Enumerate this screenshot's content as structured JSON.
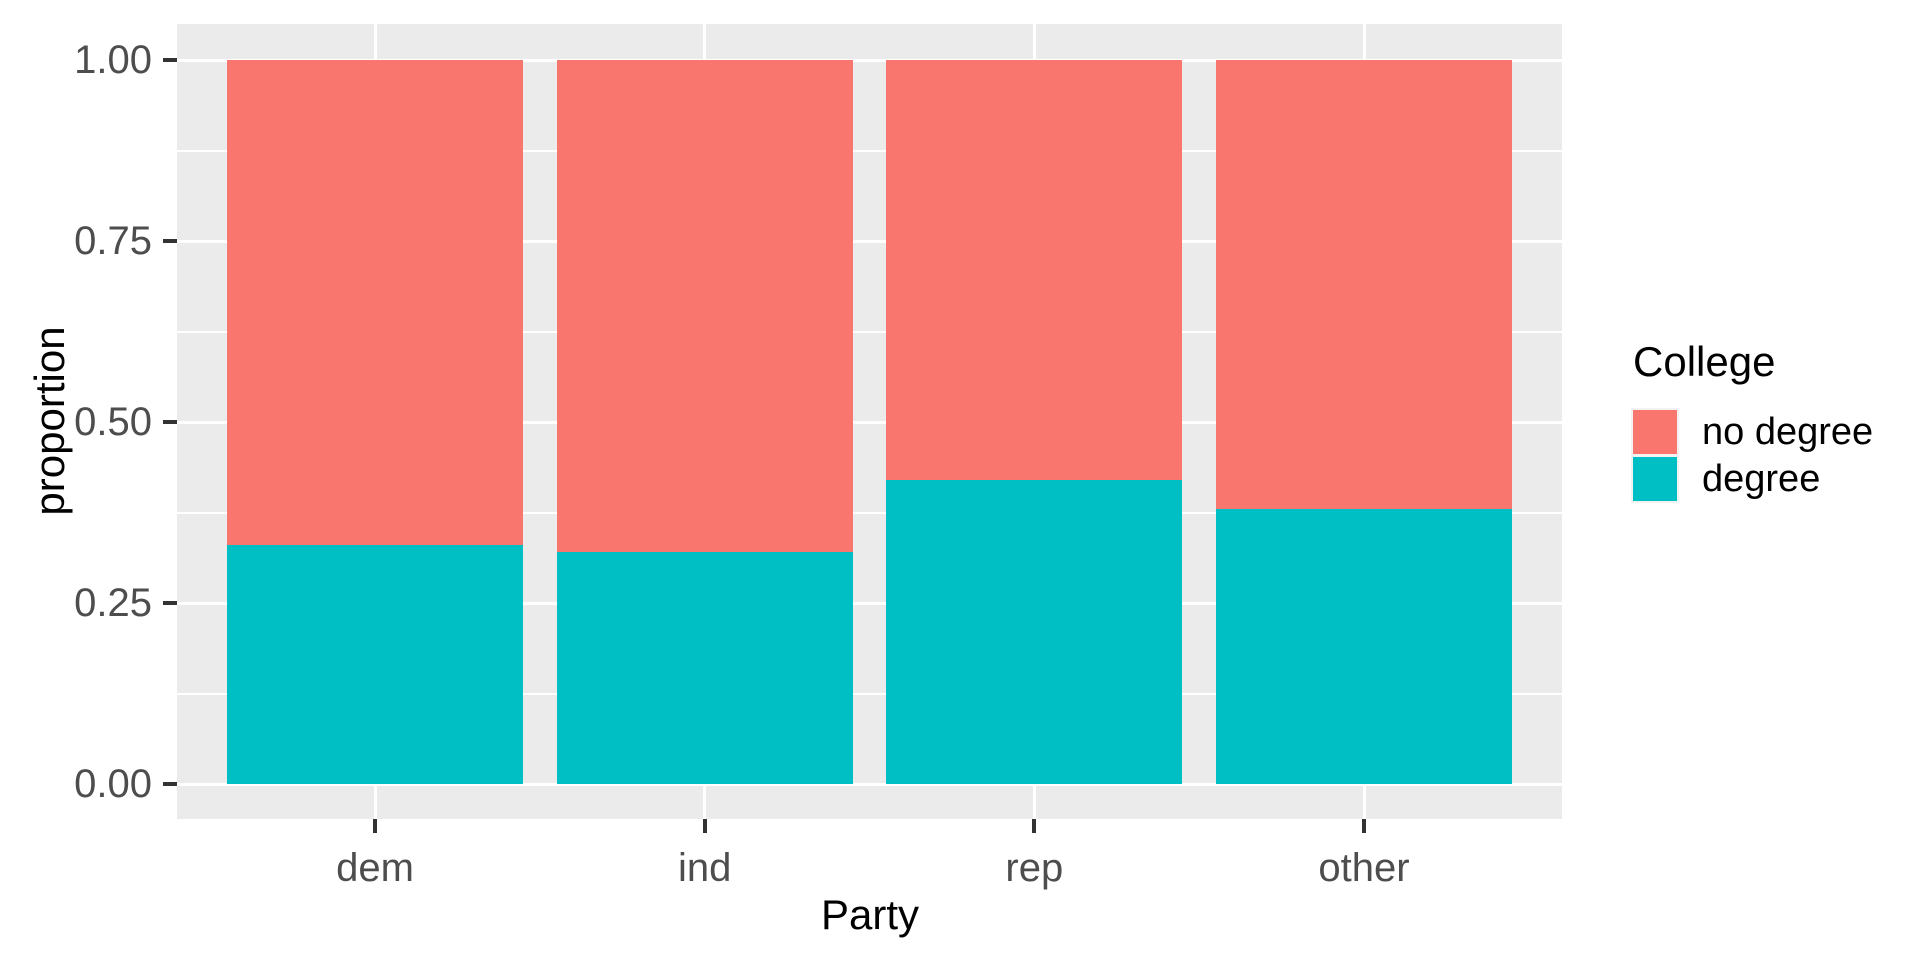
{
  "chart_data": {
    "type": "bar",
    "stacked": true,
    "orientation": "vertical",
    "title": "",
    "xlabel": "Party",
    "ylabel": "proportion",
    "categories": [
      "dem",
      "ind",
      "rep",
      "other"
    ],
    "series": [
      {
        "name": "no degree",
        "color": "#F8766D",
        "values": [
          0.67,
          0.68,
          0.58,
          0.62
        ]
      },
      {
        "name": "degree",
        "color": "#00BFC4",
        "values": [
          0.33,
          0.32,
          0.42,
          0.38
        ]
      }
    ],
    "ylim": [
      0,
      1
    ],
    "y_ticks": [
      {
        "value": 0.0,
        "label": "0.00"
      },
      {
        "value": 0.25,
        "label": "0.25"
      },
      {
        "value": 0.5,
        "label": "0.50"
      },
      {
        "value": 0.75,
        "label": "0.75"
      },
      {
        "value": 1.0,
        "label": "1.00"
      }
    ],
    "y_minor_ticks": [
      0.125,
      0.375,
      0.625,
      0.875
    ],
    "grid": "major+minor horizontal, major vertical at category centers",
    "legend": {
      "title": "College",
      "position": "right",
      "entries": [
        "no degree",
        "degree"
      ]
    }
  },
  "style": {
    "panel_background": "#EBEBEB",
    "grid_color": "#FFFFFF",
    "tick_label_color": "#4D4D4D",
    "tick_mark_color": "#333333",
    "text_color": "#000000",
    "fill_no_degree": "#F8766D",
    "fill_degree": "#00BFC4"
  }
}
